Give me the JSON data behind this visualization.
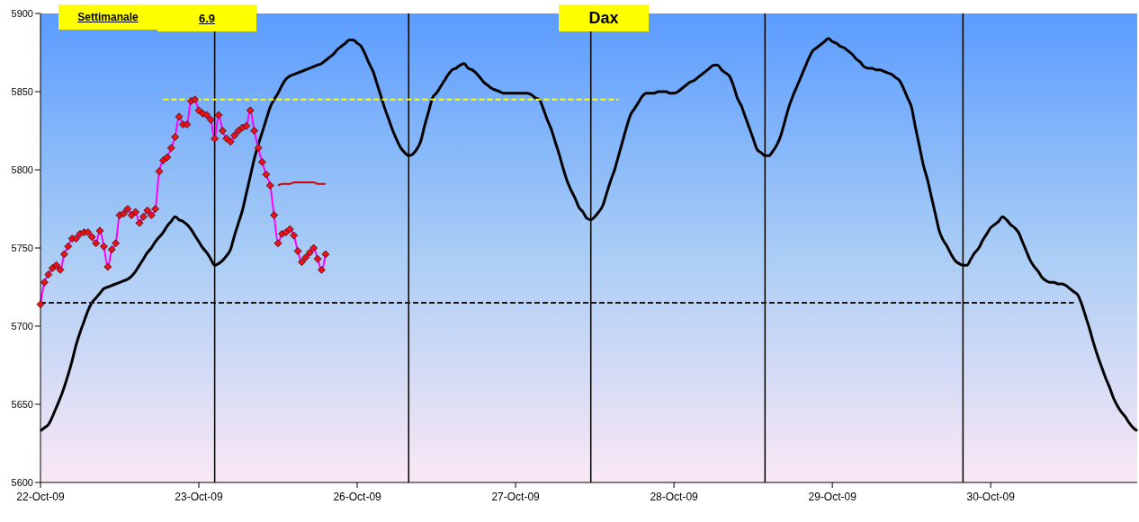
{
  "chart_data": {
    "type": "line",
    "title": "Dax",
    "annotations": [
      "Settimanale",
      "6.9"
    ],
    "categories": [
      "22-Oct-09",
      null,
      null,
      null,
      null,
      null,
      null,
      null,
      null,
      null,
      null,
      null,
      null,
      null,
      null,
      null,
      null,
      null,
      null,
      null,
      null,
      null,
      null,
      null,
      null,
      null,
      null,
      null,
      null,
      null,
      null,
      null,
      null,
      null,
      null,
      null,
      null,
      null,
      null,
      null,
      "23-Oct-09",
      null,
      null,
      null,
      null,
      null,
      null,
      null,
      null,
      null,
      null,
      null,
      null,
      null,
      null,
      null,
      null,
      null,
      null,
      null,
      null,
      null,
      null,
      null,
      null,
      null,
      null,
      null,
      null,
      null,
      null,
      null,
      null,
      null,
      null,
      null,
      null,
      null,
      null,
      null,
      "26-Oct-09",
      null,
      null,
      null,
      null,
      null,
      null,
      null,
      null,
      null,
      null,
      null,
      null,
      null,
      null,
      null,
      null,
      null,
      null,
      null,
      null,
      null,
      null,
      null,
      null,
      null,
      null,
      null,
      null,
      null,
      null,
      null,
      null,
      null,
      null,
      null,
      null,
      null,
      null,
      null,
      "27-Oct-09",
      null,
      null,
      null,
      null,
      null,
      null,
      null,
      null,
      null,
      null,
      null,
      null,
      null,
      null,
      null,
      null,
      null,
      null,
      null,
      null,
      null,
      null,
      null,
      null,
      null,
      null,
      null,
      null,
      null,
      null,
      null,
      null,
      null,
      null,
      null,
      null,
      null,
      null,
      null,
      "28-Oct-09",
      null,
      null,
      null,
      null,
      null,
      null,
      null,
      null,
      null,
      null,
      null,
      null,
      null,
      null,
      null,
      null,
      null,
      null,
      null,
      null,
      null,
      null,
      null,
      null,
      null,
      null,
      null,
      null,
      null,
      null,
      null,
      null,
      null,
      null,
      null,
      null,
      null,
      null,
      null,
      "29-Oct-09",
      null,
      null,
      null,
      null,
      null,
      null,
      null,
      null,
      null,
      null,
      null,
      null,
      null,
      null,
      null,
      null,
      null,
      null,
      null,
      null,
      null,
      null,
      null,
      null,
      null,
      null,
      null,
      null,
      null,
      null,
      null,
      null,
      null,
      null,
      null,
      null,
      null,
      null,
      null,
      "30-Oct-09",
      null,
      null,
      null,
      null,
      null,
      null,
      null,
      null,
      null,
      null,
      null,
      null,
      null,
      null,
      null,
      null,
      null,
      null,
      null,
      null,
      null,
      null,
      null,
      null,
      null,
      null,
      null,
      null,
      null,
      null,
      null,
      null,
      null,
      null,
      null,
      null,
      null
    ],
    "ylim": [
      5600,
      5900
    ],
    "yticks": [
      5600,
      5650,
      5700,
      5750,
      5800,
      5850,
      5900
    ],
    "grid": false,
    "legend": false,
    "series": [
      {
        "type": "line",
        "color": "#000000",
        "marker": "none",
        "line_style": "solid",
        "values": [
          5633,
          5635,
          5637,
          5642,
          5648,
          5654,
          5661,
          5669,
          5678,
          5688,
          5696,
          5703,
          5710,
          5715,
          5718,
          5721,
          5724,
          5725,
          5726,
          5727,
          5728,
          5729,
          5730,
          5732,
          5735,
          5739,
          5743,
          5747,
          5750,
          5754,
          5757,
          5760,
          5764,
          5767,
          5770,
          5768,
          5767,
          5765,
          5762,
          5758,
          5754,
          5750,
          5747,
          5743,
          5739,
          5740,
          5742,
          5745,
          5749,
          5758,
          5766,
          5774,
          5785,
          5796,
          5807,
          5816,
          5824,
          5832,
          5840,
          5845,
          5849,
          5854,
          5858,
          5860,
          5861,
          5862,
          5863,
          5864,
          5865,
          5866,
          5867,
          5868,
          5870,
          5872,
          5874,
          5877,
          5879,
          5881,
          5883,
          5883,
          5881,
          5879,
          5874,
          5868,
          5863,
          5855,
          5847,
          5839,
          5832,
          5825,
          5819,
          5814,
          5811,
          5809,
          5810,
          5813,
          5818,
          5828,
          5837,
          5846,
          5849,
          5853,
          5857,
          5861,
          5864,
          5865,
          5867,
          5868,
          5865,
          5864,
          5862,
          5859,
          5856,
          5854,
          5852,
          5851,
          5850,
          5849,
          5849,
          5849,
          5849,
          5849,
          5849,
          5849,
          5848,
          5846,
          5845,
          5839,
          5832,
          5826,
          5818,
          5810,
          5801,
          5793,
          5787,
          5782,
          5776,
          5773,
          5769,
          5768,
          5770,
          5773,
          5777,
          5785,
          5793,
          5800,
          5809,
          5818,
          5827,
          5835,
          5839,
          5843,
          5847,
          5849,
          5849,
          5849,
          5850,
          5850,
          5850,
          5849,
          5849,
          5850,
          5852,
          5854,
          5856,
          5857,
          5859,
          5861,
          5863,
          5865,
          5867,
          5867,
          5864,
          5862,
          5860,
          5854,
          5846,
          5841,
          5834,
          5827,
          5820,
          5813,
          5811,
          5809,
          5809,
          5812,
          5816,
          5822,
          5831,
          5840,
          5847,
          5853,
          5859,
          5865,
          5871,
          5876,
          5878,
          5880,
          5882,
          5884,
          5882,
          5881,
          5879,
          5878,
          5876,
          5874,
          5871,
          5869,
          5866,
          5865,
          5865,
          5864,
          5864,
          5863,
          5862,
          5861,
          5859,
          5857,
          5852,
          5846,
          5840,
          5827,
          5815,
          5803,
          5794,
          5783,
          5772,
          5761,
          5755,
          5751,
          5746,
          5742,
          5740,
          5739,
          5739,
          5743,
          5747,
          5750,
          5755,
          5759,
          5763,
          5765,
          5767,
          5770,
          5768,
          5765,
          5763,
          5760,
          5754,
          5748,
          5742,
          5738,
          5735,
          5731,
          5729,
          5728,
          5728,
          5727,
          5727,
          5726,
          5724,
          5722,
          5720,
          5714,
          5706,
          5698,
          5689,
          5681,
          5674,
          5667,
          5661,
          5654,
          5649,
          5645,
          5642,
          5638,
          5635,
          5633
        ]
      },
      {
        "type": "line",
        "color": "#ff00ff",
        "marker": "none",
        "line_style": "solid",
        "values": [
          5714,
          5728,
          5733,
          5737,
          5739,
          5736,
          5746,
          5751,
          5756,
          5756,
          5759,
          5760,
          5760,
          5757,
          5753,
          5761,
          5751,
          5738,
          5749,
          5753,
          5771,
          5772,
          5775,
          5771,
          5773,
          5766,
          5770,
          5774,
          5771,
          5775,
          5799,
          5806,
          5808,
          5814,
          5821,
          5834,
          5829,
          5829,
          5844,
          5845,
          5838,
          5836,
          5835,
          5832,
          5820,
          5835,
          5825,
          5820,
          5818,
          5822,
          5825,
          5827,
          5828,
          5838,
          5825,
          5814,
          5805,
          5797,
          5790,
          5771,
          5753,
          5759,
          5760,
          5762,
          5758,
          5748,
          5741,
          5744,
          5747,
          5750,
          5743,
          5736,
          5746,
          null,
          null,
          null,
          null,
          null,
          null,
          null,
          null,
          null,
          null,
          null,
          null,
          null,
          null,
          null,
          null,
          null,
          null,
          null,
          null,
          null,
          null,
          null,
          null,
          null,
          null,
          null,
          null,
          null,
          null,
          null,
          null,
          null,
          null,
          null,
          null,
          null,
          null,
          null,
          null,
          null,
          null,
          null,
          null,
          null,
          null,
          null,
          null,
          null,
          null,
          null,
          null,
          null,
          null,
          null,
          null,
          null,
          null,
          null,
          null,
          null,
          null,
          null,
          null,
          null,
          null,
          null,
          null,
          null,
          null,
          null,
          null,
          null,
          null,
          null,
          null,
          null,
          null,
          null,
          null,
          null,
          null,
          null,
          null,
          null,
          null,
          null,
          null,
          null,
          null,
          null,
          null,
          null,
          null,
          null,
          null,
          null,
          null,
          null,
          null,
          null,
          null,
          null,
          null,
          null,
          null,
          null,
          null,
          null,
          null,
          null,
          null,
          null,
          null,
          null,
          null,
          null,
          null,
          null,
          null,
          null,
          null,
          null,
          null,
          null,
          null,
          null,
          null,
          null,
          null,
          null,
          null,
          null,
          null,
          null,
          null,
          null,
          null,
          null,
          null,
          null,
          null,
          null,
          null,
          null,
          null,
          null,
          null,
          null,
          null,
          null,
          null,
          null,
          null,
          null,
          null,
          null,
          null,
          null,
          null,
          null,
          null,
          null,
          null,
          null,
          null,
          null,
          null,
          null,
          null,
          null,
          null,
          null,
          null,
          null,
          null,
          null,
          null,
          null,
          null,
          null,
          null,
          null,
          null,
          null,
          null,
          null,
          null,
          null,
          null,
          null,
          null,
          null,
          null,
          null,
          null,
          null,
          null,
          null,
          null,
          null,
          null,
          null,
          null,
          null
        ]
      },
      {
        "type": "scatter",
        "color": "#e8141c",
        "marker": "diamond",
        "values": [
          5714,
          5728,
          5733,
          5737,
          5739,
          5736,
          5746,
          5751,
          5756,
          5756,
          5759,
          5760,
          5760,
          5757,
          5753,
          5761,
          5751,
          5738,
          5749,
          5753,
          5771,
          5772,
          5775,
          5771,
          5773,
          5766,
          5770,
          5774,
          5771,
          5775,
          5799,
          5806,
          5808,
          5814,
          5821,
          5834,
          5829,
          5829,
          5844,
          5845,
          5838,
          5836,
          5835,
          5832,
          5820,
          5835,
          5825,
          5820,
          5818,
          5822,
          5825,
          5827,
          5828,
          5838,
          5825,
          5814,
          5805,
          5797,
          5790,
          5771,
          5753,
          5759,
          5760,
          5762,
          5758,
          5748,
          5741,
          5744,
          5747,
          5750,
          5743,
          5736,
          5746,
          null,
          null,
          null,
          null,
          null,
          null,
          null,
          null,
          null,
          null,
          null,
          null,
          null,
          null,
          null,
          null,
          null,
          null,
          null,
          null,
          null,
          null,
          null,
          null,
          null,
          null,
          null,
          null,
          null,
          null,
          null,
          null,
          null,
          null,
          null,
          null,
          null,
          null,
          null,
          null,
          null,
          null,
          null,
          null,
          null,
          null,
          null,
          null,
          null,
          null,
          null,
          null,
          null,
          null,
          null,
          null,
          null,
          null,
          null,
          null,
          null,
          null,
          null,
          null,
          null,
          null,
          null,
          null,
          null,
          null,
          null,
          null,
          null,
          null,
          null,
          null,
          null,
          null,
          null,
          null,
          null,
          null,
          null,
          null,
          null,
          null,
          null,
          null,
          null,
          null,
          null,
          null,
          null,
          null,
          null,
          null,
          null,
          null,
          null,
          null,
          null,
          null,
          null,
          null,
          null,
          null,
          null,
          null,
          null,
          null,
          null,
          null,
          null,
          null,
          null,
          null,
          null,
          null,
          null,
          null,
          null,
          null,
          null,
          null,
          null,
          null,
          null,
          null,
          null,
          null,
          null,
          null,
          null,
          null,
          null,
          null,
          null,
          null,
          null,
          null,
          null,
          null,
          null,
          null,
          null,
          null,
          null,
          null,
          null,
          null,
          null,
          null,
          null,
          null,
          null,
          null,
          null,
          null,
          null,
          null,
          null,
          null,
          null,
          null,
          null,
          null,
          null,
          null,
          null,
          null,
          null,
          null,
          null,
          null,
          null,
          null,
          null,
          null,
          null,
          null,
          null,
          null,
          null,
          null,
          null,
          null,
          null,
          null,
          null,
          null,
          null,
          null,
          null,
          null,
          null,
          null,
          null,
          null,
          null,
          null,
          null,
          null,
          null,
          null,
          null
        ]
      },
      {
        "type": "line",
        "color": "#cc0000",
        "marker": "none",
        "line_style": "solid",
        "values": [
          null,
          null,
          null,
          null,
          null,
          null,
          null,
          null,
          null,
          null,
          null,
          null,
          null,
          null,
          null,
          null,
          null,
          null,
          null,
          null,
          null,
          null,
          null,
          null,
          null,
          null,
          null,
          null,
          null,
          null,
          null,
          null,
          null,
          null,
          null,
          null,
          null,
          null,
          null,
          null,
          null,
          null,
          null,
          null,
          null,
          null,
          null,
          null,
          null,
          null,
          null,
          null,
          null,
          null,
          null,
          null,
          null,
          null,
          null,
          null,
          5790,
          5791,
          5791,
          5791,
          5792,
          5792,
          5792,
          5792,
          5792,
          5792,
          5791,
          5791,
          5791,
          null,
          null,
          null,
          null,
          null,
          null,
          null,
          null,
          null,
          null,
          null,
          null,
          null,
          null,
          null,
          null,
          null,
          null,
          null,
          null,
          null,
          null,
          null,
          null,
          null,
          null,
          null,
          null,
          null,
          null,
          null,
          null,
          null,
          null,
          null,
          null,
          null,
          null,
          null,
          null,
          null,
          null,
          null,
          null,
          null,
          null,
          null,
          null,
          null,
          null,
          null,
          null,
          null,
          null,
          null,
          null,
          null,
          null,
          null,
          null,
          null,
          null,
          null,
          null,
          null,
          null,
          null,
          null,
          null,
          null,
          null,
          null,
          null,
          null,
          null,
          null,
          null,
          null,
          null,
          null,
          null,
          null,
          null,
          null,
          null,
          null,
          null,
          null,
          null,
          null,
          null,
          null,
          null,
          null,
          null,
          null,
          null,
          null,
          null,
          null,
          null,
          null,
          null,
          null,
          null,
          null,
          null,
          null,
          null,
          null,
          null,
          null,
          null,
          null,
          null,
          null,
          null,
          null,
          null,
          null,
          null,
          null,
          null,
          null,
          null,
          null,
          null,
          null,
          null,
          null,
          null,
          null,
          null,
          null,
          null,
          null,
          null,
          null,
          null,
          null,
          null,
          null,
          null,
          null,
          null,
          null,
          null,
          null,
          null,
          null,
          null,
          null,
          null,
          null,
          null,
          null,
          null,
          null,
          null,
          null,
          null,
          null,
          null,
          null,
          null,
          null,
          null,
          null,
          null,
          null,
          null,
          null,
          null,
          null,
          null,
          null,
          null,
          null,
          null,
          null,
          null,
          null,
          null,
          null,
          null,
          null,
          null,
          null,
          null,
          null,
          null,
          null,
          null,
          null,
          null,
          null,
          null,
          null,
          null,
          null,
          null,
          null,
          null,
          null,
          null
        ]
      },
      {
        "type": "line",
        "color": "#ffff00",
        "marker": "none",
        "line_style": "dashed",
        "values": [
          null,
          null,
          null,
          null,
          null,
          null,
          null,
          null,
          null,
          null,
          null,
          null,
          null,
          null,
          null,
          null,
          null,
          null,
          null,
          null,
          null,
          null,
          null,
          null,
          null,
          null,
          null,
          null,
          null,
          null,
          null,
          5845,
          5845,
          5845,
          5845,
          5845,
          5845,
          5845,
          5845,
          5845,
          5845,
          5845,
          5845,
          5845,
          5845,
          5845,
          5845,
          5845,
          5845,
          5845,
          5845,
          5845,
          5845,
          5845,
          5845,
          5845,
          5845,
          5845,
          5845,
          5845,
          5845,
          5845,
          5845,
          5845,
          5845,
          5845,
          5845,
          5845,
          5845,
          5845,
          5845,
          5845,
          5845,
          5845,
          5845,
          5845,
          5845,
          5845,
          5845,
          5845,
          5845,
          5845,
          5845,
          5845,
          5845,
          5845,
          5845,
          5845,
          5845,
          5845,
          5845,
          5845,
          5845,
          5845,
          5845,
          5845,
          5845,
          5845,
          5845,
          5845,
          5845,
          5845,
          5845,
          5845,
          5845,
          5845,
          5845,
          5845,
          5845,
          5845,
          5845,
          5845,
          5845,
          5845,
          5845,
          5845,
          5845,
          5845,
          5845,
          5845,
          5845,
          5845,
          5845,
          5845,
          5845,
          5845,
          5845,
          5845,
          5845,
          5845,
          5845,
          5845,
          5845,
          5845,
          5845,
          5845,
          5845,
          5845,
          5845,
          5845,
          5845,
          5845,
          5845,
          5845,
          5845,
          5845,
          5845,
          null,
          null,
          null,
          null,
          null,
          null,
          null,
          null,
          null,
          null,
          null,
          null,
          null,
          null,
          null,
          null,
          null,
          null,
          null,
          null,
          null,
          null,
          null,
          null,
          null,
          null,
          null,
          null,
          null,
          null,
          null,
          null,
          null,
          null,
          null,
          null,
          null,
          null,
          null,
          null,
          null,
          null,
          null,
          null,
          null,
          null,
          null,
          null,
          null,
          null,
          null,
          null,
          null,
          null,
          null,
          null,
          null,
          null,
          null,
          null,
          null,
          null,
          null,
          null,
          null,
          null,
          null,
          null,
          null,
          null,
          null,
          null,
          null,
          null,
          null,
          null,
          null,
          null,
          null,
          null,
          null,
          null,
          null,
          null,
          null,
          null,
          null,
          null,
          null,
          null,
          null,
          null,
          null,
          null,
          null,
          null,
          null,
          null,
          null,
          null,
          null,
          null,
          null,
          null,
          null,
          null,
          null,
          null,
          null,
          null,
          null,
          null,
          null,
          null,
          null,
          null,
          null,
          null,
          null,
          null,
          null,
          null,
          null,
          null,
          null,
          null,
          null,
          null,
          null,
          null,
          null
        ]
      },
      {
        "type": "line",
        "color": "#1a1a1a",
        "marker": "none",
        "line_style": "dashed",
        "values": [
          5715,
          5715,
          5715,
          5715,
          5715,
          5715,
          5715,
          5715,
          5715,
          5715,
          5715,
          5715,
          5715,
          5715,
          5715,
          5715,
          5715,
          5715,
          5715,
          5715,
          5715,
          5715,
          5715,
          5715,
          5715,
          5715,
          5715,
          5715,
          5715,
          5715,
          5715,
          5715,
          5715,
          5715,
          5715,
          5715,
          5715,
          5715,
          5715,
          5715,
          5715,
          5715,
          5715,
          5715,
          5715,
          5715,
          5715,
          5715,
          5715,
          5715,
          5715,
          5715,
          5715,
          5715,
          5715,
          5715,
          5715,
          5715,
          5715,
          5715,
          5715,
          5715,
          5715,
          5715,
          5715,
          5715,
          5715,
          5715,
          5715,
          5715,
          5715,
          5715,
          5715,
          5715,
          5715,
          5715,
          5715,
          5715,
          5715,
          5715,
          5715,
          5715,
          5715,
          5715,
          5715,
          5715,
          5715,
          5715,
          5715,
          5715,
          5715,
          5715,
          5715,
          5715,
          5715,
          5715,
          5715,
          5715,
          5715,
          5715,
          5715,
          5715,
          5715,
          5715,
          5715,
          5715,
          5715,
          5715,
          5715,
          5715,
          5715,
          5715,
          5715,
          5715,
          5715,
          5715,
          5715,
          5715,
          5715,
          5715,
          5715,
          5715,
          5715,
          5715,
          5715,
          5715,
          5715,
          5715,
          5715,
          5715,
          5715,
          5715,
          5715,
          5715,
          5715,
          5715,
          5715,
          5715,
          5715,
          5715,
          5715,
          5715,
          5715,
          5715,
          5715,
          5715,
          5715,
          5715,
          5715,
          5715,
          5715,
          5715,
          5715,
          5715,
          5715,
          5715,
          5715,
          5715,
          5715,
          5715,
          5715,
          5715,
          5715,
          5715,
          5715,
          5715,
          5715,
          5715,
          5715,
          5715,
          5715,
          5715,
          5715,
          5715,
          5715,
          5715,
          5715,
          5715,
          5715,
          5715,
          5715,
          5715,
          5715,
          5715,
          5715,
          5715,
          5715,
          5715,
          5715,
          5715,
          5715,
          5715,
          5715,
          5715,
          5715,
          5715,
          5715,
          5715,
          5715,
          5715,
          5715,
          5715,
          5715,
          5715,
          5715,
          5715,
          5715,
          5715,
          5715,
          5715,
          5715,
          5715,
          5715,
          5715,
          5715,
          5715,
          5715,
          5715,
          5715,
          5715,
          5715,
          5715,
          5715,
          5715,
          5715,
          5715,
          5715,
          5715,
          5715,
          5715,
          5715,
          5715,
          5715,
          5715,
          5715,
          5715,
          5715,
          5715,
          5715,
          5715,
          5715,
          5715,
          5715,
          5715,
          5715,
          5715,
          5715,
          5715,
          5715,
          5715,
          5715,
          5715,
          5715,
          5715,
          5715,
          5715,
          5715,
          5715,
          5715,
          5715,
          5715,
          5715,
          null,
          null,
          null,
          null,
          null,
          null,
          null,
          null,
          null,
          null,
          null,
          null,
          null,
          null,
          null,
          null
        ]
      }
    ]
  }
}
